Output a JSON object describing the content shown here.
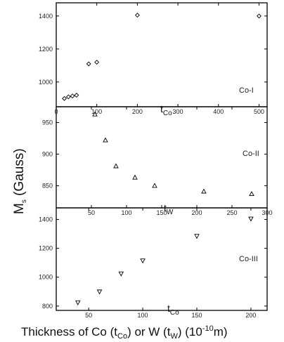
{
  "figure": {
    "ylabel": {
      "main": "M",
      "sub": "s",
      "rest": " (Gauss)"
    },
    "xlabel": {
      "part1": "Thickness of Co (t",
      "sub1": "Co",
      "part2": ") or W (t",
      "sub2": "W",
      "part3": ") (10",
      "sup": "-10",
      "part4": "m)"
    }
  },
  "chart_data": [
    {
      "type": "scatter",
      "panel_label": "Co-I",
      "marker": "diamond",
      "xaxis_label": {
        "main": "t",
        "sub": "Co"
      },
      "xlim": [
        0,
        520
      ],
      "ylim": [
        850,
        1480
      ],
      "xticks": [
        0,
        100,
        200,
        300,
        400,
        500
      ],
      "yticks": [
        1000,
        1200,
        1400
      ],
      "x": [
        20,
        30,
        40,
        50,
        80,
        100,
        200,
        500
      ],
      "y": [
        900,
        910,
        915,
        920,
        1110,
        1120,
        1405,
        1400
      ]
    },
    {
      "type": "scatter",
      "panel_label": "Co-II",
      "marker": "triangle-up",
      "xaxis_label": {
        "main": "t",
        "sub": "W"
      },
      "xlim": [
        0,
        300
      ],
      "ylim": [
        815,
        975
      ],
      "xticks": [
        50,
        100,
        150,
        200,
        250,
        300
      ],
      "yticks": [
        850,
        900,
        950
      ],
      "x": [
        55,
        70,
        85,
        112,
        140,
        210,
        278
      ],
      "y": [
        963,
        922,
        881,
        863,
        850,
        841,
        837
      ]
    },
    {
      "type": "scatter",
      "panel_label": "Co-III",
      "marker": "triangle-down",
      "xaxis_label": {
        "main": "t",
        "sub": "Co"
      },
      "xlim": [
        20,
        215
      ],
      "ylim": [
        770,
        1480
      ],
      "xticks": [
        50,
        100,
        150,
        200
      ],
      "yticks": [
        800,
        1000,
        1200,
        1400
      ],
      "x": [
        40,
        60,
        80,
        100,
        150,
        200
      ],
      "y": [
        825,
        900,
        1025,
        1115,
        1285,
        1405
      ]
    }
  ]
}
